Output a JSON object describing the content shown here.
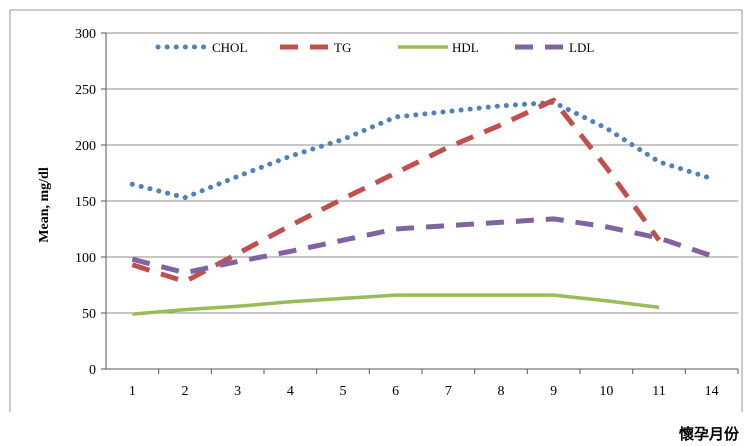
{
  "chart_data": {
    "type": "line",
    "title": "",
    "xlabel": "懷孕月份",
    "ylabel": "Mean, mg/dl",
    "ylim": [
      0,
      300
    ],
    "yticks": [
      0,
      50,
      100,
      150,
      200,
      250,
      300
    ],
    "xticks": [
      1,
      2,
      3,
      4,
      5,
      6,
      7,
      8,
      9,
      10,
      11,
      14
    ],
    "grid": "horizontal",
    "legend_position": "top",
    "series": [
      {
        "name": "CHOL",
        "color": "#4f81bd",
        "style": "dotted",
        "x": [
          1,
          2,
          3,
          4,
          5,
          6,
          7,
          8,
          9,
          10,
          11,
          12
        ],
        "values": [
          165,
          153,
          172,
          190,
          205,
          225,
          230,
          235,
          238,
          215,
          185,
          170
        ]
      },
      {
        "name": "TG",
        "color": "#c0504d",
        "style": "dashed",
        "x": [
          1,
          2,
          3,
          4,
          5,
          6,
          7,
          8,
          9,
          10,
          11
        ],
        "values": [
          93,
          78,
          103,
          128,
          152,
          175,
          198,
          218,
          240,
          180,
          115
        ]
      },
      {
        "name": "HDL",
        "color": "#9bbb59",
        "style": "solid",
        "x": [
          1,
          2,
          3,
          4,
          5,
          6,
          7,
          8,
          9,
          10,
          11
        ],
        "values": [
          49,
          53,
          56,
          60,
          63,
          66,
          66,
          66,
          66,
          61,
          55
        ]
      },
      {
        "name": "LDL",
        "color": "#8064a2",
        "style": "dashed",
        "x": [
          1,
          2,
          3,
          4,
          5,
          6,
          7,
          8,
          9,
          10,
          11,
          12
        ],
        "values": [
          98,
          86,
          96,
          105,
          115,
          125,
          128,
          131,
          134,
          127,
          117,
          101
        ]
      }
    ]
  }
}
